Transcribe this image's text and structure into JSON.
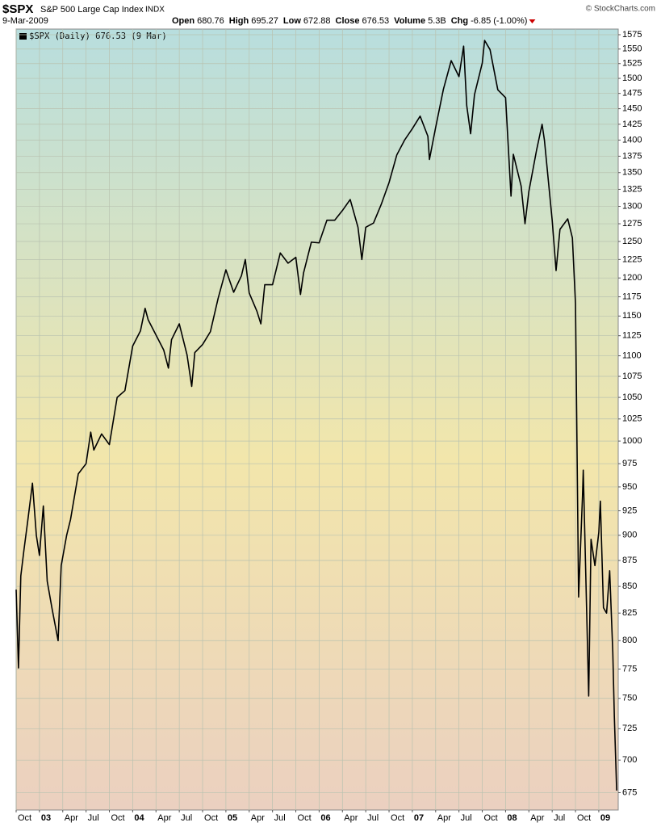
{
  "chart_data": {
    "type": "line",
    "title": "$SPX",
    "subtitle": "S&P 500 Large Cap Index",
    "exchange": "INDX",
    "date": "9-Mar-2009",
    "source": "© StockCharts.com",
    "quote": [
      {
        "label": "Open",
        "value": 680.76
      },
      {
        "label": "High",
        "value": 695.27
      },
      {
        "label": "Low",
        "value": 672.88
      },
      {
        "label": "Close",
        "value": 676.53
      },
      {
        "label": "Volume",
        "value": "5.3B"
      },
      {
        "label": "Chg",
        "value": "-6.85 (-1.00%)"
      }
    ],
    "x": [
      0,
      0.3,
      0.6,
      1,
      1.5,
      2.1,
      2.6,
      3,
      3.5,
      4,
      4.6,
      5.4,
      5.8,
      6.5,
      7,
      8,
      9,
      9.6,
      10,
      11,
      12,
      13,
      14,
      15,
      16,
      16.6,
      17,
      18,
      19,
      19.6,
      20,
      21,
      22,
      22.6,
      23,
      24,
      25,
      26,
      27,
      28,
      29,
      29.5,
      30,
      31,
      31.5,
      32,
      33,
      34,
      35,
      36,
      36.6,
      37,
      38,
      39,
      40,
      41,
      42,
      43,
      44,
      44.5,
      45,
      46,
      47,
      48,
      49,
      50,
      51,
      52,
      53,
      53.2,
      54,
      55,
      56,
      57,
      57.6,
      58,
      58.5,
      59,
      60,
      60.3,
      61,
      62,
      63,
      63.7,
      64,
      65,
      65.5,
      66,
      67,
      67.7,
      68,
      69,
      69.5,
      70,
      71,
      71.6,
      72,
      72.4,
      72.9,
      73,
      73.7,
      74,
      74.5,
      75,
      75.2,
      75.6,
      76,
      76.4,
      76.8,
      77,
      77.3
    ],
    "series": [
      {
        "name": "$SPX (Daily) 676.53 (9 Mar)",
        "color": "#000000",
        "values": [
          847,
          776,
          860,
          885,
          915,
          954,
          900,
          880,
          930,
          855,
          830,
          800,
          870,
          900,
          916,
          964,
          975,
          1010,
          990,
          1008,
          996,
          1050,
          1058,
          1112,
          1131,
          1160,
          1145,
          1126,
          1107,
          1085,
          1120,
          1140,
          1101,
          1063,
          1104,
          1114,
          1130,
          1173,
          1211,
          1181,
          1203,
          1225,
          1180,
          1156,
          1140,
          1191,
          1191,
          1234,
          1220,
          1228,
          1178,
          1207,
          1249,
          1248,
          1280,
          1280,
          1294,
          1310,
          1270,
          1225,
          1270,
          1276,
          1303,
          1335,
          1377,
          1400,
          1418,
          1438,
          1406,
          1370,
          1420,
          1482,
          1530,
          1503,
          1555,
          1455,
          1410,
          1473,
          1526,
          1565,
          1549,
          1481,
          1468,
          1315,
          1378,
          1330,
          1275,
          1322,
          1385,
          1425,
          1400,
          1280,
          1210,
          1267,
          1282,
          1255,
          1166,
          840,
          940,
          968,
          752,
          896,
          870,
          903,
          935,
          830,
          825,
          865,
          790,
          735,
          676.53
        ]
      }
    ],
    "xlim": [
      0,
      77.5
    ],
    "xticks": [
      {
        "value": 0,
        "label": "Oct"
      },
      {
        "value": 3,
        "label": "03"
      },
      {
        "value": 6,
        "label": "Apr"
      },
      {
        "value": 9,
        "label": "Jul"
      },
      {
        "value": 12,
        "label": "Oct"
      },
      {
        "value": 15,
        "label": "04"
      },
      {
        "value": 18,
        "label": "Apr"
      },
      {
        "value": 21,
        "label": "Jul"
      },
      {
        "value": 24,
        "label": "Oct"
      },
      {
        "value": 27,
        "label": "05"
      },
      {
        "value": 30,
        "label": "Apr"
      },
      {
        "value": 33,
        "label": "Jul"
      },
      {
        "value": 36,
        "label": "Oct"
      },
      {
        "value": 39,
        "label": "06"
      },
      {
        "value": 42,
        "label": "Apr"
      },
      {
        "value": 45,
        "label": "Jul"
      },
      {
        "value": 48,
        "label": "Oct"
      },
      {
        "value": 51,
        "label": "07"
      },
      {
        "value": 54,
        "label": "Apr"
      },
      {
        "value": 57,
        "label": "Jul"
      },
      {
        "value": 60,
        "label": "Oct"
      },
      {
        "value": 63,
        "label": "08"
      },
      {
        "value": 66,
        "label": "Apr"
      },
      {
        "value": 69,
        "label": "Jul"
      },
      {
        "value": 72,
        "label": "Oct"
      },
      {
        "value": 75,
        "label": "09"
      }
    ],
    "ylim": [
      662,
      1585
    ],
    "ylog": true,
    "yticks": [
      675,
      700,
      725,
      750,
      775,
      800,
      825,
      850,
      875,
      900,
      925,
      950,
      975,
      1000,
      1025,
      1050,
      1075,
      1100,
      1125,
      1150,
      1175,
      1200,
      1225,
      1250,
      1275,
      1300,
      1325,
      1350,
      1375,
      1400,
      1425,
      1450,
      1475,
      1500,
      1525,
      1550,
      1575
    ],
    "grid": true
  }
}
